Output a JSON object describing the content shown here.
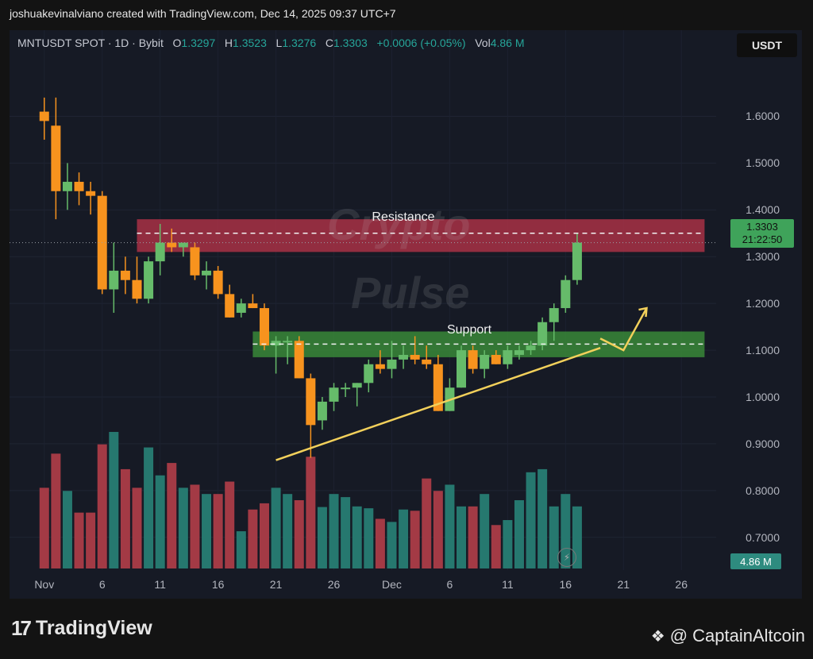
{
  "header": {
    "author_line": "joshuakevinalviano created with TradingView.com, Dec 14, 2025 09:37 UTC+7"
  },
  "symbol": {
    "name": "MNTUSDT SPOT · 1D · Bybit",
    "o_key": "O",
    "o_val": "1.3297",
    "h_key": "H",
    "h_val": "1.3523",
    "l_key": "L",
    "l_val": "1.3276",
    "c_key": "C",
    "c_val": "1.3303",
    "change": "+0.0006 (+0.05%)",
    "vol_key": "Vol",
    "vol_val": "4.86 M"
  },
  "currency_button": "USDT",
  "last_price": {
    "price": "1.3303",
    "countdown": "21:22:50"
  },
  "volume_badge": "4.86 M",
  "zones": {
    "resistance": "Resistance",
    "support": "Support"
  },
  "watermark": {
    "line1": "Crypto",
    "line2": "Pulse"
  },
  "footer": {
    "logo_mark": "17",
    "logo_name": "TradingView",
    "credit": "@ CaptainAltcoin"
  },
  "colors": {
    "up": "#66bb6a",
    "down": "#f7931e",
    "vol_up": "#26786f",
    "vol_down": "#a33a45",
    "resistance_zone": "#c2344b",
    "support_zone": "#3b8f3a",
    "trendline": "#f2d05b"
  },
  "icons": {
    "lightning": "bolt-icon",
    "binance_mark": "diamond-icon"
  },
  "chart_data": {
    "type": "candlestick",
    "price_ticks": [
      "1.6000",
      "1.5000",
      "1.4000",
      "1.3000",
      "1.2000",
      "1.1000",
      "1.0000",
      "0.9000",
      "0.8000",
      "0.7000"
    ],
    "price_tick_values": [
      1.6,
      1.5,
      1.4,
      1.3,
      1.2,
      1.1,
      1.0,
      0.9,
      0.8,
      0.7
    ],
    "y_range": [
      0.63,
      1.74
    ],
    "time_ticks": [
      "Nov",
      "6",
      "11",
      "16",
      "21",
      "26",
      "Dec",
      "6",
      "11",
      "16",
      "21",
      "26"
    ],
    "time_tick_days": [
      0,
      5,
      10,
      15,
      20,
      25,
      30,
      35,
      40,
      45,
      50,
      55
    ],
    "x_range_days": [
      -3,
      58
    ],
    "resistance_zone": [
      1.31,
      1.38
    ],
    "support_zone": [
      1.085,
      1.14
    ],
    "resistance_dashed": 1.35,
    "support_dashed": 1.113,
    "trendline": {
      "start": {
        "day": 20,
        "price": 0.865
      },
      "end": {
        "day": 48,
        "price": 1.105
      }
    },
    "projection_arrow": [
      {
        "day": 48,
        "price": 1.125
      },
      {
        "day": 50,
        "price": 1.1
      },
      {
        "day": 52,
        "price": 1.19
      }
    ],
    "volume_max": 2.2,
    "candles": [
      {
        "o": 1.61,
        "h": 1.64,
        "l": 1.55,
        "c": 1.59
      },
      {
        "o": 1.58,
        "h": 1.64,
        "l": 1.38,
        "c": 1.44
      },
      {
        "o": 1.44,
        "h": 1.5,
        "l": 1.4,
        "c": 1.46
      },
      {
        "o": 1.46,
        "h": 1.48,
        "l": 1.41,
        "c": 1.44
      },
      {
        "o": 1.44,
        "h": 1.46,
        "l": 1.39,
        "c": 1.43
      },
      {
        "o": 1.43,
        "h": 1.44,
        "l": 1.22,
        "c": 1.23
      },
      {
        "o": 1.23,
        "h": 1.33,
        "l": 1.18,
        "c": 1.27
      },
      {
        "o": 1.27,
        "h": 1.3,
        "l": 1.22,
        "c": 1.25
      },
      {
        "o": 1.25,
        "h": 1.3,
        "l": 1.2,
        "c": 1.21
      },
      {
        "o": 1.21,
        "h": 1.3,
        "l": 1.2,
        "c": 1.29
      },
      {
        "o": 1.29,
        "h": 1.37,
        "l": 1.26,
        "c": 1.33
      },
      {
        "o": 1.33,
        "h": 1.36,
        "l": 1.31,
        "c": 1.32
      },
      {
        "o": 1.32,
        "h": 1.33,
        "l": 1.3,
        "c": 1.33
      },
      {
        "o": 1.32,
        "h": 1.33,
        "l": 1.25,
        "c": 1.26
      },
      {
        "o": 1.26,
        "h": 1.29,
        "l": 1.23,
        "c": 1.27
      },
      {
        "o": 1.27,
        "h": 1.28,
        "l": 1.21,
        "c": 1.22
      },
      {
        "o": 1.22,
        "h": 1.24,
        "l": 1.17,
        "c": 1.17
      },
      {
        "o": 1.18,
        "h": 1.21,
        "l": 1.17,
        "c": 1.2
      },
      {
        "o": 1.2,
        "h": 1.22,
        "l": 1.19,
        "c": 1.19
      },
      {
        "o": 1.19,
        "h": 1.2,
        "l": 1.1,
        "c": 1.11
      },
      {
        "o": 1.11,
        "h": 1.13,
        "l": 1.05,
        "c": 1.12
      },
      {
        "o": 1.12,
        "h": 1.13,
        "l": 1.07,
        "c": 1.12
      },
      {
        "o": 1.12,
        "h": 1.13,
        "l": 1.04,
        "c": 1.04
      },
      {
        "o": 1.04,
        "h": 1.05,
        "l": 0.87,
        "c": 0.94
      },
      {
        "o": 0.95,
        "h": 1.0,
        "l": 0.93,
        "c": 0.99
      },
      {
        "o": 0.99,
        "h": 1.03,
        "l": 0.97,
        "c": 1.02
      },
      {
        "o": 1.02,
        "h": 1.03,
        "l": 1.0,
        "c": 1.02
      },
      {
        "o": 1.02,
        "h": 1.03,
        "l": 0.98,
        "c": 1.03
      },
      {
        "o": 1.03,
        "h": 1.08,
        "l": 1.01,
        "c": 1.07
      },
      {
        "o": 1.07,
        "h": 1.1,
        "l": 1.05,
        "c": 1.06
      },
      {
        "o": 1.06,
        "h": 1.12,
        "l": 1.04,
        "c": 1.08
      },
      {
        "o": 1.08,
        "h": 1.11,
        "l": 1.06,
        "c": 1.09
      },
      {
        "o": 1.09,
        "h": 1.13,
        "l": 1.07,
        "c": 1.08
      },
      {
        "o": 1.08,
        "h": 1.11,
        "l": 1.06,
        "c": 1.07
      },
      {
        "o": 1.07,
        "h": 1.09,
        "l": 0.97,
        "c": 0.97
      },
      {
        "o": 0.97,
        "h": 1.04,
        "l": 0.97,
        "c": 1.02
      },
      {
        "o": 1.02,
        "h": 1.11,
        "l": 1.02,
        "c": 1.1
      },
      {
        "o": 1.1,
        "h": 1.11,
        "l": 1.05,
        "c": 1.06
      },
      {
        "o": 1.06,
        "h": 1.1,
        "l": 1.04,
        "c": 1.09
      },
      {
        "o": 1.09,
        "h": 1.1,
        "l": 1.07,
        "c": 1.07
      },
      {
        "o": 1.07,
        "h": 1.11,
        "l": 1.06,
        "c": 1.1
      },
      {
        "o": 1.09,
        "h": 1.11,
        "l": 1.08,
        "c": 1.1
      },
      {
        "o": 1.1,
        "h": 1.12,
        "l": 1.09,
        "c": 1.11
      },
      {
        "o": 1.11,
        "h": 1.17,
        "l": 1.1,
        "c": 1.16
      },
      {
        "o": 1.16,
        "h": 1.2,
        "l": 1.12,
        "c": 1.19
      },
      {
        "o": 1.19,
        "h": 1.26,
        "l": 1.18,
        "c": 1.25
      },
      {
        "o": 1.25,
        "h": 1.35,
        "l": 1.24,
        "c": 1.33
      }
    ],
    "volumes": [
      1.3,
      1.85,
      1.25,
      0.9,
      0.9,
      2.0,
      2.2,
      1.6,
      1.3,
      1.95,
      1.5,
      1.7,
      1.3,
      1.35,
      1.2,
      1.2,
      1.4,
      0.6,
      0.95,
      1.05,
      1.3,
      1.2,
      1.1,
      1.8,
      0.99,
      1.2,
      1.15,
      1.0,
      0.97,
      0.8,
      0.75,
      0.95,
      0.93,
      1.45,
      1.25,
      1.35,
      1.0,
      1.0,
      1.2,
      0.7,
      0.78,
      1.1,
      1.55,
      1.6,
      1.0,
      1.2,
      1.0
    ]
  }
}
